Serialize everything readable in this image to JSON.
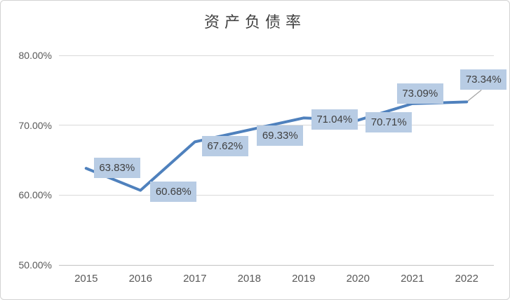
{
  "chart_data": {
    "type": "line",
    "title": "资产负债率",
    "categories": [
      "2015",
      "2016",
      "2017",
      "2018",
      "2019",
      "2020",
      "2021",
      "2022"
    ],
    "series": [
      {
        "name": "资产负债率",
        "values": [
          63.83,
          60.68,
          67.62,
          69.33,
          71.04,
          70.71,
          73.09,
          73.34
        ],
        "data_labels": [
          "63.83%",
          "60.68%",
          "67.62%",
          "69.33%",
          "71.04%",
          "70.71%",
          "73.09%",
          "73.34%"
        ]
      }
    ],
    "xlabel": "",
    "ylabel": "",
    "ylim": [
      50,
      80
    ],
    "y_ticks": [
      {
        "label": "80.00%",
        "value": 80
      },
      {
        "label": "70.00%",
        "value": 70
      },
      {
        "label": "60.00%",
        "value": 60
      },
      {
        "label": "50.00%",
        "value": 50
      }
    ],
    "grid": "horizontal",
    "legend": "none",
    "colors": {
      "line": "#4f81bd",
      "label_fill": "#b8cce4",
      "label_text": "#3f3f3f",
      "gridline": "#d9d9d9",
      "axis_line": "#c3c3c3",
      "axis_text": "#595959",
      "title_text": "#404040",
      "leader_line": "#a6a6a6",
      "chart_border": "#d2d2d2",
      "background": "#ffffff"
    }
  }
}
